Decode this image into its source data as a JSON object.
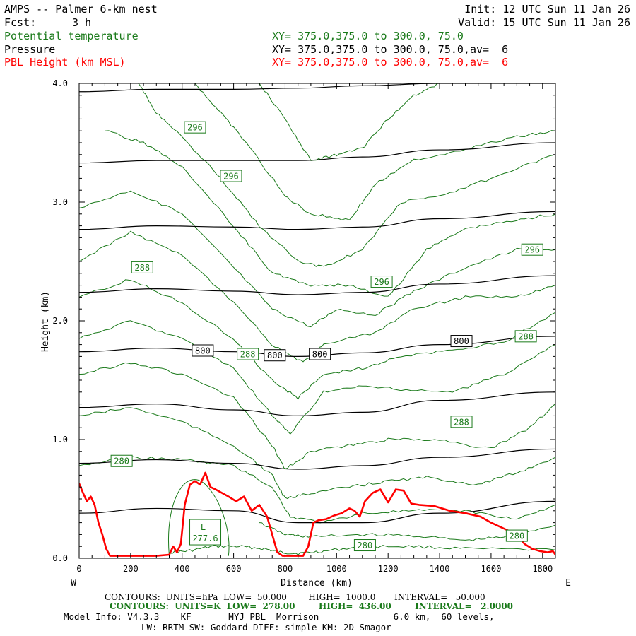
{
  "header": {
    "title": "AMPS -- Palmer 6-km nest",
    "fcst_label": "Fcst:",
    "fcst_value": "3 h",
    "init": "Init: 12 UTC Sun 11 Jan 26",
    "valid": "Valid: 15 UTC Sun 11 Jan 26",
    "field1": "Potential temperature",
    "field2": "Pressure",
    "field3": "PBL Height (km MSL)",
    "xy1": "XY= 375.0,375.0 to 300.0, 75.0",
    "xy2": "XY= 375.0,375.0 to 300.0, 75.0,av=  6",
    "xy3": "XY= 375.0,375.0 to 300.0, 75.0,av=  6"
  },
  "colors": {
    "pressure": "#000000",
    "theta": "#1a7a1a",
    "pbl": "#ff0000"
  },
  "chart_data": {
    "type": "line",
    "title": "AMPS -- Palmer 6-km nest",
    "xlabel": "Distance (km)",
    "ylabel": "Height (km)",
    "xlim": [
      0,
      1850
    ],
    "ylim": [
      0,
      4.0
    ],
    "x_ticks": [
      0,
      200,
      400,
      600,
      800,
      1000,
      1200,
      1400,
      1600,
      1800
    ],
    "y_ticks": [
      0.0,
      1.0,
      2.0,
      3.0,
      4.0
    ],
    "y_tick_labels": [
      "0.0",
      "1.0",
      "2.0",
      "3.0",
      "4.0"
    ],
    "x_end_labels": {
      "left": "W",
      "right": "E"
    },
    "pressure_series": [
      {
        "name": "pressure",
        "x": [
          0,
          300,
          600,
          850,
          1100,
          1400,
          1850
        ],
        "y": [
          0.38,
          0.42,
          0.4,
          0.3,
          0.3,
          0.38,
          0.48
        ]
      },
      {
        "name": "pressure",
        "x": [
          0,
          300,
          600,
          850,
          1100,
          1400,
          1850
        ],
        "y": [
          0.8,
          0.83,
          0.8,
          0.75,
          0.78,
          0.85,
          0.92
        ]
      },
      {
        "name": "pressure",
        "x": [
          0,
          300,
          600,
          850,
          1100,
          1400,
          1850
        ],
        "y": [
          1.27,
          1.3,
          1.25,
          1.2,
          1.23,
          1.33,
          1.4
        ]
      },
      {
        "name": "pressure 800",
        "x": [
          0,
          300,
          600,
          850,
          1100,
          1400,
          1850
        ],
        "y": [
          1.74,
          1.77,
          1.74,
          1.7,
          1.73,
          1.8,
          1.87
        ]
      },
      {
        "name": "pressure",
        "x": [
          0,
          300,
          600,
          850,
          1100,
          1400,
          1850
        ],
        "y": [
          2.24,
          2.27,
          2.25,
          2.22,
          2.24,
          2.31,
          2.38
        ]
      },
      {
        "name": "pressure",
        "x": [
          0,
          300,
          600,
          850,
          1100,
          1400,
          1850
        ],
        "y": [
          2.77,
          2.8,
          2.79,
          2.77,
          2.79,
          2.86,
          2.92
        ]
      },
      {
        "name": "pressure",
        "x": [
          0,
          300,
          600,
          850,
          1100,
          1400,
          1850
        ],
        "y": [
          3.33,
          3.35,
          3.35,
          3.35,
          3.38,
          3.44,
          3.5
        ]
      },
      {
        "name": "pressure",
        "x": [
          0,
          300,
          600,
          850,
          1100,
          1400,
          1850
        ],
        "y": [
          3.93,
          3.95,
          3.95,
          3.96,
          3.98,
          4.0,
          4.0
        ]
      }
    ],
    "theta_series": [
      {
        "name": "theta",
        "x": [
          350,
          420,
          520,
          620,
          720,
          780,
          850,
          950,
          1100,
          1300,
          1500,
          1850
        ],
        "y": [
          0.05,
          0.06,
          0.1,
          0.1,
          0.08,
          0.05,
          0.04,
          0.06,
          0.1,
          0.1,
          0.08,
          0.07
        ]
      },
      {
        "name": "theta",
        "x": [
          700,
          800,
          900,
          1100,
          1300,
          1500,
          1650,
          1850
        ],
        "y": [
          0.3,
          0.2,
          0.18,
          0.2,
          0.19,
          0.15,
          0.18,
          0.28
        ]
      },
      {
        "name": "theta 280",
        "x": [
          0,
          200,
          400,
          600,
          750,
          820,
          950,
          1100,
          1300,
          1500,
          1700,
          1850
        ],
        "y": [
          0.78,
          0.85,
          0.83,
          0.78,
          0.6,
          0.35,
          0.3,
          0.38,
          0.4,
          0.4,
          0.33,
          0.45
        ]
      },
      {
        "name": "theta",
        "x": [
          0,
          200,
          400,
          600,
          750,
          800,
          900,
          1050,
          1200,
          1350,
          1550,
          1700,
          1850
        ],
        "y": [
          1.2,
          1.27,
          1.15,
          0.95,
          0.7,
          0.5,
          0.55,
          0.6,
          0.65,
          0.68,
          0.62,
          0.72,
          0.85
        ]
      },
      {
        "name": "theta",
        "x": [
          0,
          200,
          400,
          600,
          750,
          800,
          900,
          1050,
          1200,
          1400,
          1600,
          1750,
          1850
        ],
        "y": [
          1.55,
          1.65,
          1.55,
          1.35,
          0.95,
          0.75,
          0.9,
          0.95,
          1.0,
          1.0,
          0.92,
          1.1,
          1.3
        ]
      },
      {
        "name": "theta",
        "x": [
          0,
          200,
          400,
          600,
          750,
          820,
          950,
          1100,
          1250,
          1450,
          1650,
          1850
        ],
        "y": [
          1.85,
          2.0,
          1.85,
          1.6,
          1.2,
          1.05,
          1.4,
          1.45,
          1.42,
          1.4,
          1.55,
          1.8
        ]
      },
      {
        "name": "theta 288",
        "x": [
          0,
          200,
          400,
          600,
          750,
          850,
          950,
          1100,
          1250,
          1450,
          1650,
          1850
        ],
        "y": [
          2.2,
          2.35,
          2.15,
          1.85,
          1.5,
          1.35,
          1.55,
          1.6,
          1.7,
          1.75,
          1.82,
          2.07
        ]
      },
      {
        "name": "theta",
        "x": [
          0,
          200,
          400,
          600,
          750,
          870,
          950,
          1150,
          1300,
          1500,
          1700,
          1850
        ],
        "y": [
          2.5,
          2.75,
          2.55,
          2.15,
          1.8,
          1.65,
          1.8,
          1.9,
          2.1,
          2.2,
          2.2,
          2.3
        ]
      },
      {
        "name": "theta",
        "x": [
          0,
          200,
          400,
          600,
          750,
          900,
          1000,
          1150,
          1300,
          1500,
          1700,
          1850
        ],
        "y": [
          2.95,
          3.1,
          2.9,
          2.45,
          2.1,
          1.95,
          2.1,
          2.05,
          2.25,
          2.45,
          2.6,
          2.6
        ]
      },
      {
        "name": "theta",
        "x": [
          100,
          250,
          400,
          600,
          750,
          900,
          1050,
          1200,
          1350,
          1500,
          1700,
          1850
        ],
        "y": [
          3.6,
          3.5,
          3.3,
          2.8,
          2.4,
          2.3,
          2.3,
          2.2,
          2.6,
          2.78,
          2.85,
          2.9
        ]
      },
      {
        "name": "theta 296",
        "x": [
          230,
          300,
          400,
          550,
          700,
          850,
          950,
          1100,
          1250,
          1400,
          1600,
          1850
        ],
        "y": [
          4.0,
          3.75,
          3.55,
          3.2,
          2.8,
          2.5,
          2.45,
          2.6,
          3.0,
          3.05,
          3.2,
          3.4
        ]
      },
      {
        "name": "theta",
        "x": [
          450,
          550,
          650,
          800,
          900,
          1050,
          1150,
          1300,
          1500,
          1700,
          1850
        ],
        "y": [
          4.0,
          3.75,
          3.5,
          3.05,
          2.9,
          2.85,
          3.15,
          3.35,
          3.45,
          3.55,
          3.6
        ]
      },
      {
        "name": "theta",
        "x": [
          700,
          800,
          900,
          1000,
          1100,
          1200,
          1300,
          1400
        ],
        "y": [
          4.0,
          3.7,
          3.35,
          3.4,
          3.45,
          3.7,
          3.9,
          4.0
        ]
      }
    ],
    "pbl_height": {
      "name": "PBL Height (km MSL)",
      "x": [
        0,
        15,
        30,
        45,
        60,
        75,
        90,
        105,
        120,
        135,
        200,
        300,
        350,
        365,
        380,
        395,
        410,
        430,
        450,
        470,
        490,
        510,
        530,
        555,
        580,
        610,
        640,
        670,
        700,
        730,
        750,
        770,
        790,
        800,
        870,
        890,
        910,
        930,
        960,
        990,
        1020,
        1050,
        1070,
        1090,
        1110,
        1140,
        1170,
        1200,
        1230,
        1260,
        1290,
        1320,
        1380,
        1440,
        1500,
        1560,
        1600,
        1650,
        1700,
        1730,
        1760,
        1790,
        1820,
        1840,
        1850
      ],
      "y": [
        0.63,
        0.55,
        0.48,
        0.52,
        0.45,
        0.3,
        0.2,
        0.08,
        0.02,
        0.02,
        0.02,
        0.02,
        0.03,
        0.1,
        0.05,
        0.12,
        0.45,
        0.62,
        0.65,
        0.62,
        0.72,
        0.6,
        0.58,
        0.55,
        0.52,
        0.48,
        0.52,
        0.4,
        0.45,
        0.35,
        0.2,
        0.05,
        0.02,
        0.02,
        0.02,
        0.1,
        0.3,
        0.32,
        0.33,
        0.36,
        0.38,
        0.42,
        0.4,
        0.35,
        0.48,
        0.55,
        0.58,
        0.47,
        0.58,
        0.57,
        0.46,
        0.45,
        0.44,
        0.4,
        0.38,
        0.35,
        0.3,
        0.25,
        0.2,
        0.12,
        0.08,
        0.06,
        0.05,
        0.06,
        0.03
      ]
    },
    "contour_labels": [
      {
        "text": "296",
        "x": 450,
        "y": 3.63,
        "kind": "theta"
      },
      {
        "text": "296",
        "x": 590,
        "y": 3.22,
        "kind": "theta"
      },
      {
        "text": "288",
        "x": 245,
        "y": 2.45,
        "kind": "theta"
      },
      {
        "text": "296",
        "x": 1175,
        "y": 2.33,
        "kind": "theta"
      },
      {
        "text": "296",
        "x": 1760,
        "y": 2.6,
        "kind": "theta"
      },
      {
        "text": "288",
        "x": 655,
        "y": 1.72,
        "kind": "theta"
      },
      {
        "text": "288",
        "x": 1735,
        "y": 1.87,
        "kind": "theta"
      },
      {
        "text": "288",
        "x": 1485,
        "y": 1.15,
        "kind": "theta"
      },
      {
        "text": "280",
        "x": 165,
        "y": 0.82,
        "kind": "theta"
      },
      {
        "text": "280",
        "x": 1110,
        "y": 0.11,
        "kind": "theta"
      },
      {
        "text": "280",
        "x": 1700,
        "y": 0.19,
        "kind": "theta"
      },
      {
        "text": "800",
        "x": 480,
        "y": 1.75,
        "kind": "pressure"
      },
      {
        "text": "800",
        "x": 760,
        "y": 1.71,
        "kind": "pressure"
      },
      {
        "text": "800",
        "x": 935,
        "y": 1.72,
        "kind": "pressure"
      },
      {
        "text": "800",
        "x": 1485,
        "y": 1.83,
        "kind": "pressure"
      }
    ],
    "low_center": {
      "label": "L",
      "value": "277.6",
      "x": 490,
      "y": 0.22
    }
  },
  "footer": {
    "line1": "CONTOURS:  UNITS=hPa  LOW=  50.000        HIGH=  1000.0       INTERVAL=   50.000",
    "line2": "CONTOURS:  UNITS=K  LOW=  278.00        HIGH=  436.00        INTERVAL=   2.0000",
    "line3": "Model Info: V4.3.3    KF       MYJ PBL  Morrison              6.0 km,  60 levels,",
    "line4": "LW: RRTM SW: Goddard DIFF: simple KM: 2D Smagor"
  }
}
